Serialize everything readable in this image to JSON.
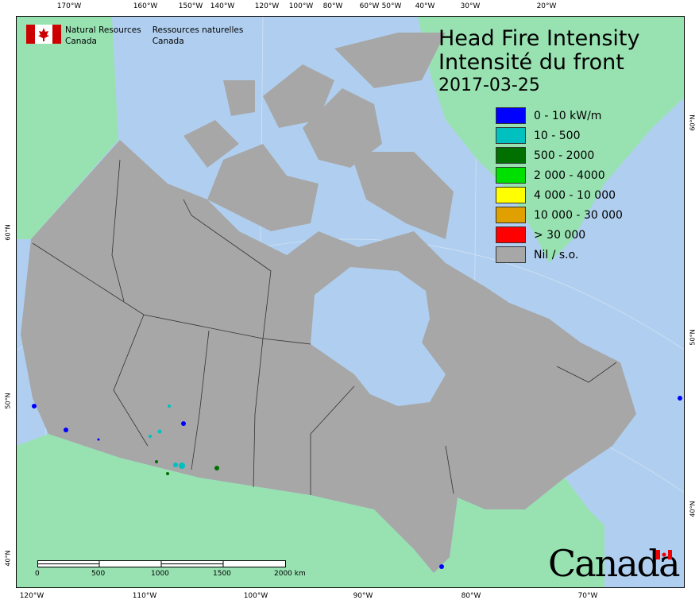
{
  "map": {
    "title_en": "Head Fire Intensity",
    "title_fr": "Intensité du front",
    "date": "2017-03-25",
    "colors": {
      "ocean": "#b0cff0",
      "foreign_land": "#98e2b2",
      "canada": "#a7a7a7"
    },
    "legend": [
      {
        "label": "0 - 10 kW/m",
        "color": "#0000ff"
      },
      {
        "label": "10 - 500",
        "color": "#00c0c0"
      },
      {
        "label": "500 - 2000",
        "color": "#007000"
      },
      {
        "label": "2 000 - 4000",
        "color": "#00e000"
      },
      {
        "label": "4 000 - 10 000",
        "color": "#ffff00"
      },
      {
        "label": "10 000 - 30 000",
        "color": "#e0a000"
      },
      {
        "label": "> 30 000",
        "color": "#ff0000"
      },
      {
        "label": "Nil / s.o.",
        "color": "#a7a7a7"
      }
    ],
    "top_ticks": [
      "170°W",
      "160°W",
      "150°W",
      "140°W",
      "120°W",
      "100°W",
      "80°W",
      "60°W",
      "50°W",
      "40°W",
      "30°W",
      "20°W"
    ],
    "bottom_ticks": [
      "120°W",
      "110°W",
      "100°W",
      "90°W",
      "80°W",
      "70°W"
    ],
    "left_ticks": [
      "60°N",
      "50°N",
      "40°N"
    ],
    "right_ticks": [
      "60°N",
      "50°N",
      "40°N"
    ],
    "scale": {
      "labels": [
        "0",
        "500",
        "1000",
        "1500",
        "2000 km"
      ]
    },
    "agency_en": [
      "Natural Resources",
      "Canada"
    ],
    "agency_fr": [
      "Ressources naturelles",
      "Canada"
    ],
    "wordmark": "Canada"
  }
}
